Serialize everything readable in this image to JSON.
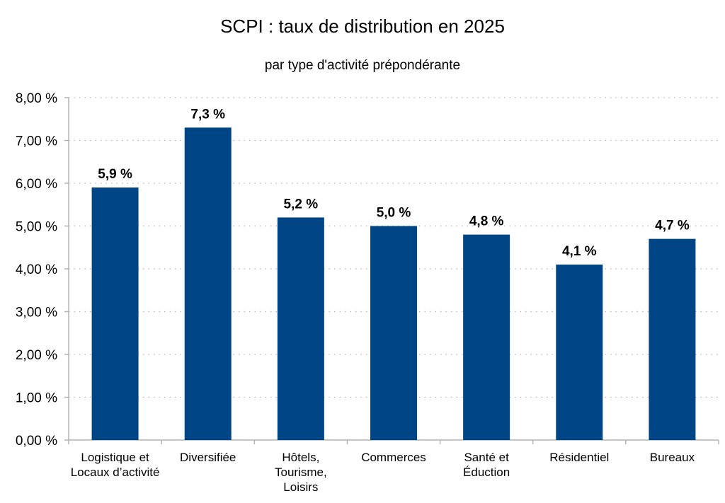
{
  "chart_data": {
    "type": "bar",
    "title": "SCPI : taux de distribution en 2025",
    "subtitle": "par type d'activité prépondérante",
    "xlabel": "",
    "ylabel": "",
    "categories": [
      [
        "Logistique et",
        "Locaux d’activité"
      ],
      [
        "Diversifiée"
      ],
      [
        "Hôtels,",
        "Tourisme,",
        "Loisirs"
      ],
      [
        "Commerces"
      ],
      [
        "Santé et",
        "Éduction"
      ],
      [
        "Résidentiel"
      ],
      [
        "Bureaux"
      ]
    ],
    "values": [
      5.9,
      7.3,
      5.2,
      5.0,
      4.8,
      4.1,
      4.7
    ],
    "data_labels": [
      "5,9 %",
      "7,3 %",
      "5,2 %",
      "5,0 %",
      "4,8 %",
      "4,1 %",
      "4,7 %"
    ],
    "ylim": [
      0,
      8
    ],
    "yticks": [
      "0,00 %",
      "1,00 %",
      "2,00 %",
      "3,00 %",
      "4,00 %",
      "5,00 %",
      "6,00 %",
      "7,00 %",
      "8,00 %"
    ],
    "grid": true,
    "legend": "none",
    "bar_color": "#004586"
  }
}
